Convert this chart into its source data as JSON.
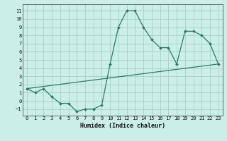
{
  "xlabel": "Humidex (Indice chaleur)",
  "line1_x": [
    0,
    1,
    2,
    3,
    4,
    5,
    6,
    7,
    8,
    9,
    10,
    11,
    12,
    13,
    14,
    15,
    16,
    17,
    18,
    19,
    20,
    21,
    22,
    23
  ],
  "line1_y": [
    1.5,
    1.0,
    1.5,
    0.5,
    -0.3,
    -0.3,
    -1.3,
    -1.0,
    -1.0,
    -0.5,
    4.5,
    9.0,
    11.0,
    11.0,
    9.0,
    7.5,
    6.5,
    6.5,
    4.5,
    8.5,
    8.5,
    8.0,
    7.0,
    4.5
  ],
  "line2_x": [
    0,
    23
  ],
  "line2_y": [
    1.5,
    4.5
  ],
  "line_color": "#2a7a6a",
  "bg_color": "#cceee8",
  "grid_color": "#aad4ce",
  "xlim": [
    -0.5,
    23.5
  ],
  "ylim": [
    -1.8,
    11.8
  ],
  "yticks": [
    -1,
    0,
    1,
    2,
    3,
    4,
    5,
    6,
    7,
    8,
    9,
    10,
    11
  ],
  "xticks": [
    0,
    1,
    2,
    3,
    4,
    5,
    6,
    7,
    8,
    9,
    10,
    11,
    12,
    13,
    14,
    15,
    16,
    17,
    18,
    19,
    20,
    21,
    22,
    23
  ],
  "tick_fontsize": 5.0,
  "xlabel_fontsize": 6.0
}
